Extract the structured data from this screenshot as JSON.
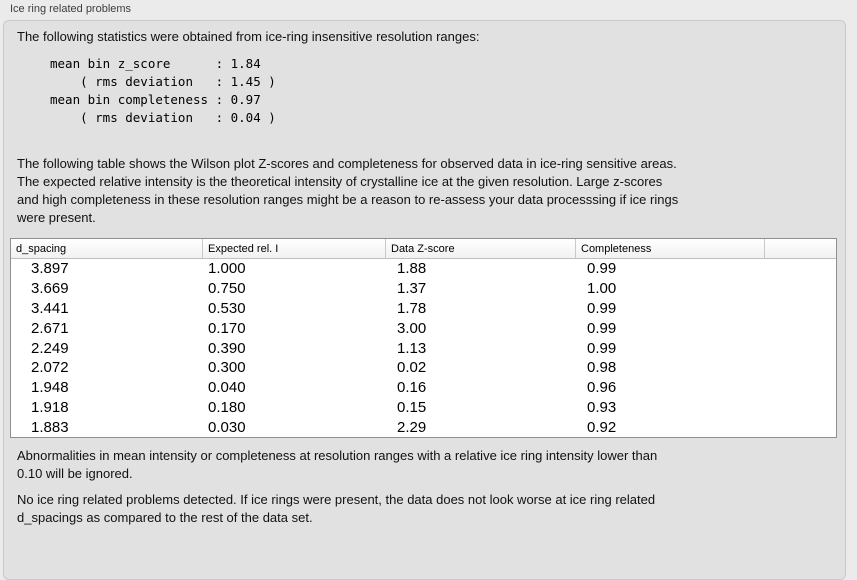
{
  "header": {
    "label": "Ice ring related problems"
  },
  "intro": {
    "text": "The following statistics were obtained from ice-ring insensitive resolution ranges:"
  },
  "stats": {
    "lines": [
      "mean bin z_score      : 1.84",
      "    ( rms deviation   : 1.45 )",
      "mean bin completeness : 0.97",
      "    ( rms deviation   : 0.04 )"
    ],
    "mean_bin_z_score": "1.84",
    "z_score_rms_deviation": "1.45",
    "mean_bin_completeness": "0.97",
    "completeness_rms_deviation": "0.04"
  },
  "description": {
    "lines": [
      "The following table shows the Wilson plot Z-scores and completeness for observed data in ice-ring sensitive areas.",
      "The expected relative intensity is the theoretical intensity of crystalline ice at the given resolution. Large z-scores",
      "and high completeness in these resolution ranges might be a reason to re-assess your data processsing if ice rings",
      "were present."
    ]
  },
  "table": {
    "headers": [
      "d_spacing",
      "Expected rel. I",
      "Data Z-score",
      "Completeness"
    ],
    "rows": [
      [
        "3.897",
        "1.000",
        "1.88",
        "0.99"
      ],
      [
        "3.669",
        "0.750",
        "1.37",
        "1.00"
      ],
      [
        "3.441",
        "0.530",
        "1.78",
        "0.99"
      ],
      [
        "2.671",
        "0.170",
        "3.00",
        "0.99"
      ],
      [
        "2.249",
        "0.390",
        "1.13",
        "0.99"
      ],
      [
        "2.072",
        "0.300",
        "0.02",
        "0.98"
      ],
      [
        "1.948",
        "0.040",
        "0.16",
        "0.96"
      ],
      [
        "1.918",
        "0.180",
        "0.15",
        "0.93"
      ],
      [
        "1.883",
        "0.030",
        "2.29",
        "0.92"
      ]
    ]
  },
  "ignore_note": {
    "lines": [
      "Abnormalities in mean intensity or completeness at resolution ranges with a relative ice ring intensity lower than",
      "0.10 will be ignored."
    ]
  },
  "conclusion": {
    "lines": [
      "No ice ring related problems detected. If ice rings were present, the data does not look worse at ice ring related",
      "d_spacings as compared to the rest of the data set."
    ]
  },
  "colors": {
    "window_bg": "#ebebeb",
    "panel_bg": "#e1e1e1",
    "panel_border": "#c9c9c9",
    "table_bg": "#ffffff",
    "table_border": "#8f8f8f",
    "header_separator": "#c9c9c9",
    "text": "#111111"
  }
}
